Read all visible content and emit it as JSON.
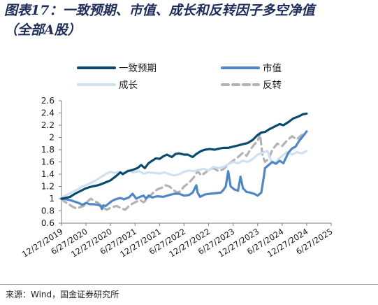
{
  "title": {
    "line1": "图表17：一致预期、市值、成长和反转因子多空净值",
    "line2": "（全部A股）"
  },
  "source": "来源：Wind，国金证券研究所",
  "chart_data": {
    "type": "line",
    "ylim": [
      0.6,
      2.6
    ],
    "yticks": [
      "0.6",
      "0.8",
      "1",
      "1.2",
      "1.4",
      "1.6",
      "1.8",
      "2",
      "2.2",
      "2.4",
      "2.6"
    ],
    "xticks": [
      "12/27/2019",
      "6/27/2020",
      "12/27/2020",
      "6/27/2021",
      "12/27/2021",
      "6/27/2022",
      "12/27/2022",
      "6/27/2023",
      "12/27/2023",
      "6/27/2024",
      "12/27/2024",
      "6/27/2025"
    ],
    "grid": false,
    "legend_position": "top",
    "series": [
      {
        "name": "一致预期",
        "color": "#0b4a6e",
        "style": "solid",
        "width": 3.2,
        "points": [
          [
            0,
            1.0
          ],
          [
            0.15,
            1.01
          ],
          [
            0.35,
            1.03
          ],
          [
            0.55,
            1.08
          ],
          [
            0.75,
            1.12
          ],
          [
            1.0,
            1.17
          ],
          [
            1.25,
            1.2
          ],
          [
            1.5,
            1.22
          ],
          [
            1.7,
            1.25
          ],
          [
            2.0,
            1.3
          ],
          [
            2.2,
            1.36
          ],
          [
            2.4,
            1.43
          ],
          [
            2.5,
            1.4
          ],
          [
            2.7,
            1.45
          ],
          [
            2.9,
            1.47
          ],
          [
            3.1,
            1.5
          ],
          [
            3.25,
            1.55
          ],
          [
            3.4,
            1.5
          ],
          [
            3.55,
            1.58
          ],
          [
            3.7,
            1.62
          ],
          [
            3.85,
            1.66
          ],
          [
            4.0,
            1.65
          ],
          [
            4.15,
            1.69
          ],
          [
            4.3,
            1.72
          ],
          [
            4.5,
            1.68
          ],
          [
            4.65,
            1.73
          ],
          [
            4.8,
            1.74
          ],
          [
            5.0,
            1.72
          ],
          [
            5.15,
            1.72
          ],
          [
            5.35,
            1.68
          ],
          [
            5.5,
            1.73
          ],
          [
            5.7,
            1.78
          ],
          [
            5.85,
            1.8
          ],
          [
            6.05,
            1.81
          ],
          [
            6.25,
            1.8
          ],
          [
            6.45,
            1.82
          ],
          [
            6.6,
            1.83
          ],
          [
            6.8,
            1.83
          ],
          [
            7.0,
            1.85
          ],
          [
            7.2,
            1.87
          ],
          [
            7.4,
            1.89
          ],
          [
            7.6,
            1.91
          ],
          [
            7.8,
            1.96
          ],
          [
            8.0,
            2.04
          ],
          [
            8.15,
            2.08
          ],
          [
            8.3,
            2.09
          ],
          [
            8.5,
            2.14
          ],
          [
            8.7,
            2.18
          ],
          [
            8.9,
            2.22
          ],
          [
            9.05,
            2.2
          ],
          [
            9.25,
            2.25
          ],
          [
            9.45,
            2.31
          ],
          [
            9.65,
            2.34
          ],
          [
            9.85,
            2.38
          ],
          [
            10.0,
            2.39
          ]
        ]
      },
      {
        "name": "市值",
        "color": "#4f86c6",
        "style": "solid",
        "width": 3.2,
        "points": [
          [
            0,
            1.0
          ],
          [
            0.2,
            0.99
          ],
          [
            0.4,
            0.97
          ],
          [
            0.55,
            0.95
          ],
          [
            0.7,
            0.93
          ],
          [
            0.85,
            0.9
          ],
          [
            1.0,
            0.93
          ],
          [
            1.15,
            0.91
          ],
          [
            1.3,
            0.91
          ],
          [
            1.5,
            0.9
          ],
          [
            1.6,
            0.88
          ],
          [
            1.65,
            0.83
          ],
          [
            1.7,
            0.89
          ],
          [
            1.8,
            0.88
          ],
          [
            2.05,
            0.96
          ],
          [
            2.2,
            0.99
          ],
          [
            2.4,
            1.01
          ],
          [
            2.55,
            0.99
          ],
          [
            2.75,
            1.02
          ],
          [
            2.9,
            1.08
          ],
          [
            3.05,
            1.0
          ],
          [
            3.2,
            1.03
          ],
          [
            3.35,
            1.05
          ],
          [
            3.45,
            1.0
          ],
          [
            3.55,
            1.05
          ],
          [
            3.7,
            1.02
          ],
          [
            3.9,
            1.04
          ],
          [
            4.15,
            1.03
          ],
          [
            4.4,
            1.06
          ],
          [
            4.6,
            1.08
          ],
          [
            4.8,
            1.08
          ],
          [
            5.0,
            1.05
          ],
          [
            5.2,
            1.06
          ],
          [
            5.35,
            1.1
          ],
          [
            5.5,
            1.22
          ],
          [
            5.55,
            1.1
          ],
          [
            5.65,
            1.03
          ],
          [
            5.85,
            1.07
          ],
          [
            6.05,
            1.08
          ],
          [
            6.3,
            1.09
          ],
          [
            6.5,
            1.1
          ],
          [
            6.6,
            1.14
          ],
          [
            6.7,
            1.2
          ],
          [
            6.8,
            1.45
          ],
          [
            6.9,
            1.2
          ],
          [
            7.05,
            1.15
          ],
          [
            7.2,
            1.13
          ],
          [
            7.3,
            1.36
          ],
          [
            7.4,
            1.17
          ],
          [
            7.55,
            1.11
          ],
          [
            7.7,
            1.1
          ],
          [
            7.85,
            1.08
          ],
          [
            8.0,
            1.05
          ],
          [
            8.15,
            1.1
          ],
          [
            8.25,
            1.35
          ],
          [
            8.3,
            1.5
          ],
          [
            8.45,
            1.55
          ],
          [
            8.6,
            1.6
          ],
          [
            8.75,
            1.57
          ],
          [
            8.9,
            1.62
          ],
          [
            9.05,
            1.58
          ],
          [
            9.25,
            1.75
          ],
          [
            9.4,
            1.82
          ],
          [
            9.55,
            1.85
          ],
          [
            9.7,
            1.95
          ],
          [
            9.85,
            2.02
          ],
          [
            10.0,
            2.1
          ]
        ]
      },
      {
        "name": "成长",
        "color": "#cfe0f3",
        "style": "solid",
        "width": 3.2,
        "points": [
          [
            0,
            1.02
          ],
          [
            0.2,
            1.06
          ],
          [
            0.4,
            1.1
          ],
          [
            0.55,
            1.13
          ],
          [
            0.7,
            1.16
          ],
          [
            0.85,
            1.2
          ],
          [
            1.0,
            1.22
          ],
          [
            1.2,
            1.26
          ],
          [
            1.4,
            1.3
          ],
          [
            1.6,
            1.35
          ],
          [
            1.8,
            1.4
          ],
          [
            2.0,
            1.44
          ],
          [
            2.15,
            1.42
          ],
          [
            2.35,
            1.44
          ],
          [
            2.55,
            1.42
          ],
          [
            2.75,
            1.45
          ],
          [
            2.95,
            1.43
          ],
          [
            3.15,
            1.45
          ],
          [
            3.35,
            1.41
          ],
          [
            3.55,
            1.43
          ],
          [
            3.8,
            1.42
          ],
          [
            4.0,
            1.41
          ],
          [
            4.2,
            1.43
          ],
          [
            4.4,
            1.4
          ],
          [
            4.6,
            1.38
          ],
          [
            4.8,
            1.4
          ],
          [
            5.0,
            1.44
          ],
          [
            5.2,
            1.46
          ],
          [
            5.4,
            1.45
          ],
          [
            5.6,
            1.47
          ],
          [
            5.8,
            1.49
          ],
          [
            6.0,
            1.46
          ],
          [
            6.2,
            1.52
          ],
          [
            6.4,
            1.5
          ],
          [
            6.6,
            1.52
          ],
          [
            6.8,
            1.56
          ],
          [
            7.0,
            1.6
          ],
          [
            7.2,
            1.58
          ],
          [
            7.4,
            1.62
          ],
          [
            7.6,
            1.6
          ],
          [
            7.8,
            1.65
          ],
          [
            8.0,
            1.72
          ],
          [
            8.2,
            1.75
          ],
          [
            8.4,
            1.78
          ],
          [
            8.55,
            1.62
          ],
          [
            8.7,
            1.57
          ],
          [
            8.85,
            1.65
          ],
          [
            9.0,
            1.7
          ],
          [
            9.2,
            1.76
          ],
          [
            9.4,
            1.72
          ],
          [
            9.6,
            1.76
          ],
          [
            9.8,
            1.74
          ],
          [
            10.0,
            1.78
          ]
        ]
      },
      {
        "name": "反转",
        "color": "#b3b3b3",
        "style": "dashed",
        "width": 3.2,
        "points": [
          [
            0,
            1.0
          ],
          [
            0.1,
            0.96
          ],
          [
            0.25,
            0.92
          ],
          [
            0.45,
            0.87
          ],
          [
            0.6,
            0.84
          ],
          [
            0.75,
            0.86
          ],
          [
            0.9,
            0.88
          ],
          [
            1.05,
            0.95
          ],
          [
            1.2,
            1.0
          ],
          [
            1.35,
            0.96
          ],
          [
            1.5,
            0.93
          ],
          [
            1.65,
            0.87
          ],
          [
            1.85,
            0.82
          ],
          [
            2.05,
            0.86
          ],
          [
            2.25,
            0.88
          ],
          [
            2.45,
            0.84
          ],
          [
            2.6,
            0.82
          ],
          [
            2.75,
            0.88
          ],
          [
            2.9,
            0.92
          ],
          [
            3.05,
            0.95
          ],
          [
            3.2,
            0.98
          ],
          [
            3.35,
            0.94
          ],
          [
            3.5,
            1.0
          ],
          [
            3.65,
            1.06
          ],
          [
            3.8,
            1.12
          ],
          [
            3.95,
            1.16
          ],
          [
            4.1,
            1.18
          ],
          [
            4.25,
            1.22
          ],
          [
            4.4,
            1.2
          ],
          [
            4.55,
            1.15
          ],
          [
            4.7,
            1.1
          ],
          [
            4.85,
            1.12
          ],
          [
            5.0,
            1.2
          ],
          [
            5.2,
            1.26
          ],
          [
            5.4,
            1.35
          ],
          [
            5.55,
            1.45
          ],
          [
            5.7,
            1.38
          ],
          [
            5.85,
            1.42
          ],
          [
            6.0,
            1.47
          ],
          [
            6.2,
            1.5
          ],
          [
            6.4,
            1.45
          ],
          [
            6.6,
            1.48
          ],
          [
            6.8,
            1.56
          ],
          [
            7.0,
            1.62
          ],
          [
            7.2,
            1.68
          ],
          [
            7.4,
            1.75
          ],
          [
            7.55,
            1.7
          ],
          [
            7.7,
            1.8
          ],
          [
            7.85,
            1.88
          ],
          [
            8.0,
            1.94
          ],
          [
            8.1,
            2.06
          ],
          [
            8.2,
            1.7
          ],
          [
            8.3,
            1.6
          ],
          [
            8.45,
            1.65
          ],
          [
            8.6,
            1.8
          ],
          [
            8.8,
            1.9
          ],
          [
            9.0,
            1.86
          ],
          [
            9.2,
            1.95
          ],
          [
            9.4,
            2.02
          ],
          [
            9.6,
            1.97
          ],
          [
            9.8,
            2.04
          ],
          [
            10.0,
            2.06
          ]
        ]
      }
    ]
  }
}
